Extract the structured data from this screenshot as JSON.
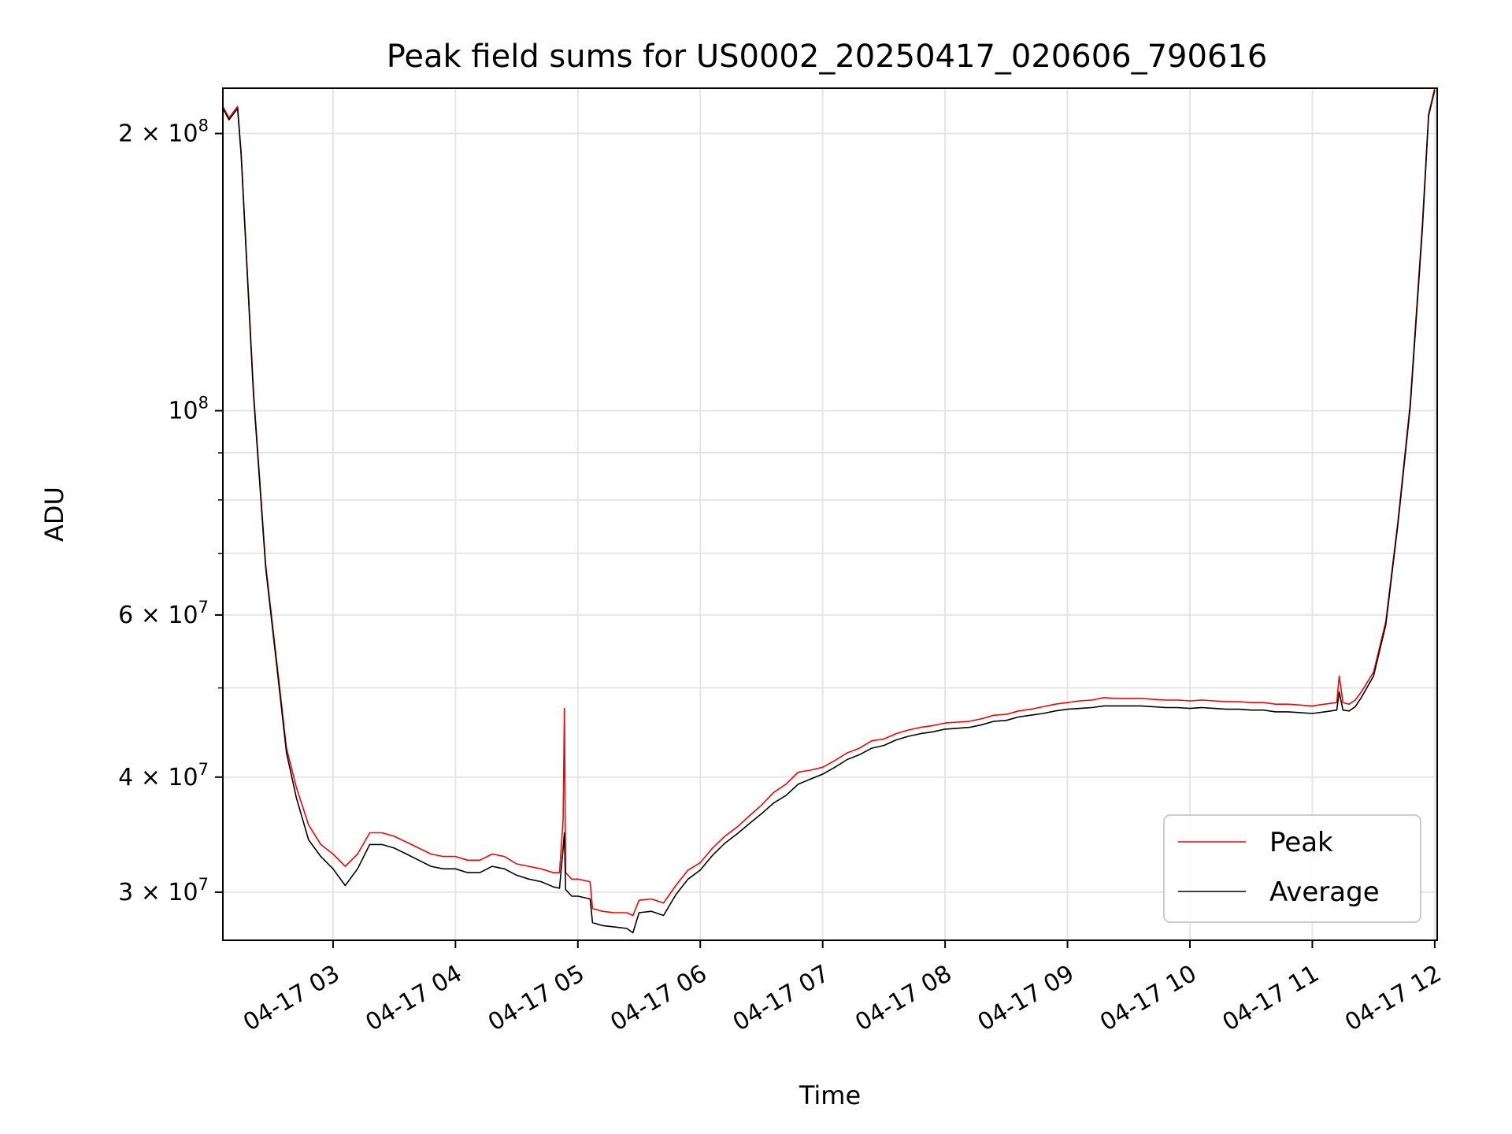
{
  "chart_data": {
    "type": "line",
    "title": "Peak field sums for US0002_20250417_020606_790616",
    "xlabel": "Time",
    "ylabel": "ADU",
    "x_unit": "hour",
    "xlim": [
      2.1,
      12.02
    ],
    "ylim": [
      26600000,
      224000000
    ],
    "y_scale": "log",
    "grid": true,
    "legend_position": "lower-right",
    "x_ticks": [
      {
        "value": 3,
        "label": "04-17 03"
      },
      {
        "value": 4,
        "label": "04-17 04"
      },
      {
        "value": 5,
        "label": "04-17 05"
      },
      {
        "value": 6,
        "label": "04-17 06"
      },
      {
        "value": 7,
        "label": "04-17 07"
      },
      {
        "value": 8,
        "label": "04-17 08"
      },
      {
        "value": 9,
        "label": "04-17 09"
      },
      {
        "value": 10,
        "label": "04-17 10"
      },
      {
        "value": 11,
        "label": "04-17 11"
      },
      {
        "value": 12,
        "label": "04-17 12"
      }
    ],
    "y_ticks": [
      {
        "value": 30000000,
        "base": "3 × 10",
        "exp": "7"
      },
      {
        "value": 40000000,
        "base": "4 × 10",
        "exp": "7"
      },
      {
        "value": 60000000,
        "base": "6 × 10",
        "exp": "7"
      },
      {
        "value": 100000000,
        "base": "10",
        "exp": "8"
      },
      {
        "value": 200000000,
        "base": "2 × 10",
        "exp": "8"
      }
    ],
    "y_minor_ticks": [
      50000000,
      70000000,
      80000000,
      90000000
    ],
    "colors": {
      "peak": "#ff0000",
      "average": "#000000"
    },
    "series": [
      {
        "name": "Peak",
        "x": [
          2.1,
          2.15,
          2.22,
          2.25,
          2.35,
          2.45,
          2.55,
          2.62,
          2.7,
          2.8,
          2.9,
          3.0,
          3.1,
          3.2,
          3.3,
          3.4,
          3.5,
          3.6,
          3.7,
          3.8,
          3.9,
          4.0,
          4.1,
          4.2,
          4.3,
          4.4,
          4.5,
          4.6,
          4.7,
          4.8,
          4.85,
          4.88,
          4.89,
          4.9,
          4.95,
          5.0,
          5.1,
          5.12,
          5.2,
          5.3,
          5.4,
          5.45,
          5.5,
          5.6,
          5.7,
          5.8,
          5.9,
          6.0,
          6.1,
          6.2,
          6.3,
          6.4,
          6.5,
          6.6,
          6.7,
          6.8,
          6.9,
          7.0,
          7.1,
          7.2,
          7.3,
          7.4,
          7.5,
          7.6,
          7.7,
          7.8,
          7.9,
          8.0,
          8.1,
          8.2,
          8.3,
          8.4,
          8.5,
          8.6,
          8.7,
          8.8,
          8.9,
          9.0,
          9.1,
          9.2,
          9.3,
          9.4,
          9.5,
          9.6,
          9.7,
          9.8,
          9.9,
          10.0,
          10.1,
          10.2,
          10.3,
          10.4,
          10.5,
          10.6,
          10.7,
          10.8,
          10.9,
          11.0,
          11.1,
          11.2,
          11.22,
          11.25,
          11.3,
          11.35,
          11.4,
          11.5,
          11.6,
          11.7,
          11.8,
          11.9,
          11.95,
          12.0
        ],
        "y": [
          214000000,
          208000000,
          214000000,
          190000000,
          105000000,
          68000000,
          52000000,
          43000000,
          39000000,
          35500000,
          33800000,
          33000000,
          32000000,
          33000000,
          34800000,
          34800000,
          34500000,
          34000000,
          33500000,
          33000000,
          32800000,
          32800000,
          32500000,
          32500000,
          33000000,
          32800000,
          32200000,
          32000000,
          31800000,
          31500000,
          31500000,
          36000000,
          47500000,
          31500000,
          31000000,
          31000000,
          30800000,
          28800000,
          28600000,
          28500000,
          28500000,
          28300000,
          29400000,
          29500000,
          29200000,
          30500000,
          31700000,
          32300000,
          33500000,
          34500000,
          35300000,
          36300000,
          37300000,
          38500000,
          39300000,
          40500000,
          40700000,
          41000000,
          41700000,
          42500000,
          43000000,
          43800000,
          44000000,
          44600000,
          45000000,
          45300000,
          45500000,
          45800000,
          45900000,
          46000000,
          46300000,
          46700000,
          46800000,
          47200000,
          47400000,
          47700000,
          48000000,
          48200000,
          48400000,
          48500000,
          48800000,
          48700000,
          48700000,
          48700000,
          48600000,
          48500000,
          48500000,
          48400000,
          48500000,
          48400000,
          48300000,
          48300000,
          48200000,
          48200000,
          48000000,
          48000000,
          47900000,
          47800000,
          48000000,
          48200000,
          51500000,
          48200000,
          48000000,
          48500000,
          49500000,
          52000000,
          59000000,
          76000000,
          102000000,
          160000000,
          210000000,
          224000000
        ]
      },
      {
        "name": "Average",
        "x": [
          2.1,
          2.15,
          2.22,
          2.25,
          2.35,
          2.45,
          2.55,
          2.62,
          2.7,
          2.8,
          2.9,
          3.0,
          3.1,
          3.2,
          3.3,
          3.4,
          3.5,
          3.6,
          3.7,
          3.8,
          3.9,
          4.0,
          4.1,
          4.2,
          4.3,
          4.4,
          4.5,
          4.6,
          4.7,
          4.8,
          4.85,
          4.88,
          4.89,
          4.9,
          4.95,
          5.0,
          5.1,
          5.12,
          5.2,
          5.3,
          5.4,
          5.45,
          5.5,
          5.6,
          5.7,
          5.8,
          5.9,
          6.0,
          6.1,
          6.2,
          6.3,
          6.4,
          6.5,
          6.6,
          6.7,
          6.8,
          6.9,
          7.0,
          7.1,
          7.2,
          7.3,
          7.4,
          7.5,
          7.6,
          7.7,
          7.8,
          7.9,
          8.0,
          8.1,
          8.2,
          8.3,
          8.4,
          8.5,
          8.6,
          8.7,
          8.8,
          8.9,
          9.0,
          9.1,
          9.2,
          9.3,
          9.4,
          9.5,
          9.6,
          9.7,
          9.8,
          9.9,
          10.0,
          10.1,
          10.2,
          10.3,
          10.4,
          10.5,
          10.6,
          10.7,
          10.8,
          10.9,
          11.0,
          11.1,
          11.2,
          11.22,
          11.25,
          11.3,
          11.35,
          11.4,
          11.5,
          11.6,
          11.7,
          11.8,
          11.9,
          11.95,
          12.0
        ],
        "y": [
          213000000,
          207000000,
          213000000,
          189000000,
          104000000,
          67500000,
          51500000,
          42500000,
          38000000,
          34200000,
          32800000,
          31800000,
          30500000,
          31800000,
          33800000,
          33800000,
          33500000,
          33000000,
          32500000,
          32000000,
          31800000,
          31800000,
          31500000,
          31500000,
          32000000,
          31800000,
          31300000,
          31000000,
          30800000,
          30400000,
          30300000,
          33500000,
          34800000,
          30200000,
          29700000,
          29700000,
          29500000,
          27800000,
          27600000,
          27500000,
          27400000,
          27100000,
          28500000,
          28600000,
          28300000,
          29800000,
          31000000,
          31700000,
          32900000,
          33900000,
          34700000,
          35600000,
          36500000,
          37500000,
          38200000,
          39300000,
          39800000,
          40300000,
          41000000,
          41800000,
          42300000,
          43000000,
          43300000,
          43900000,
          44300000,
          44600000,
          44800000,
          45100000,
          45200000,
          45300000,
          45600000,
          46000000,
          46100000,
          46500000,
          46700000,
          46900000,
          47200000,
          47400000,
          47500000,
          47600000,
          47800000,
          47800000,
          47800000,
          47800000,
          47700000,
          47600000,
          47600000,
          47500000,
          47600000,
          47500000,
          47400000,
          47400000,
          47300000,
          47300000,
          47100000,
          47100000,
          47000000,
          46900000,
          47100000,
          47300000,
          49500000,
          47300000,
          47200000,
          47700000,
          48800000,
          51500000,
          58500000,
          75500000,
          101000000,
          158000000,
          209000000,
          223000000
        ]
      }
    ]
  }
}
